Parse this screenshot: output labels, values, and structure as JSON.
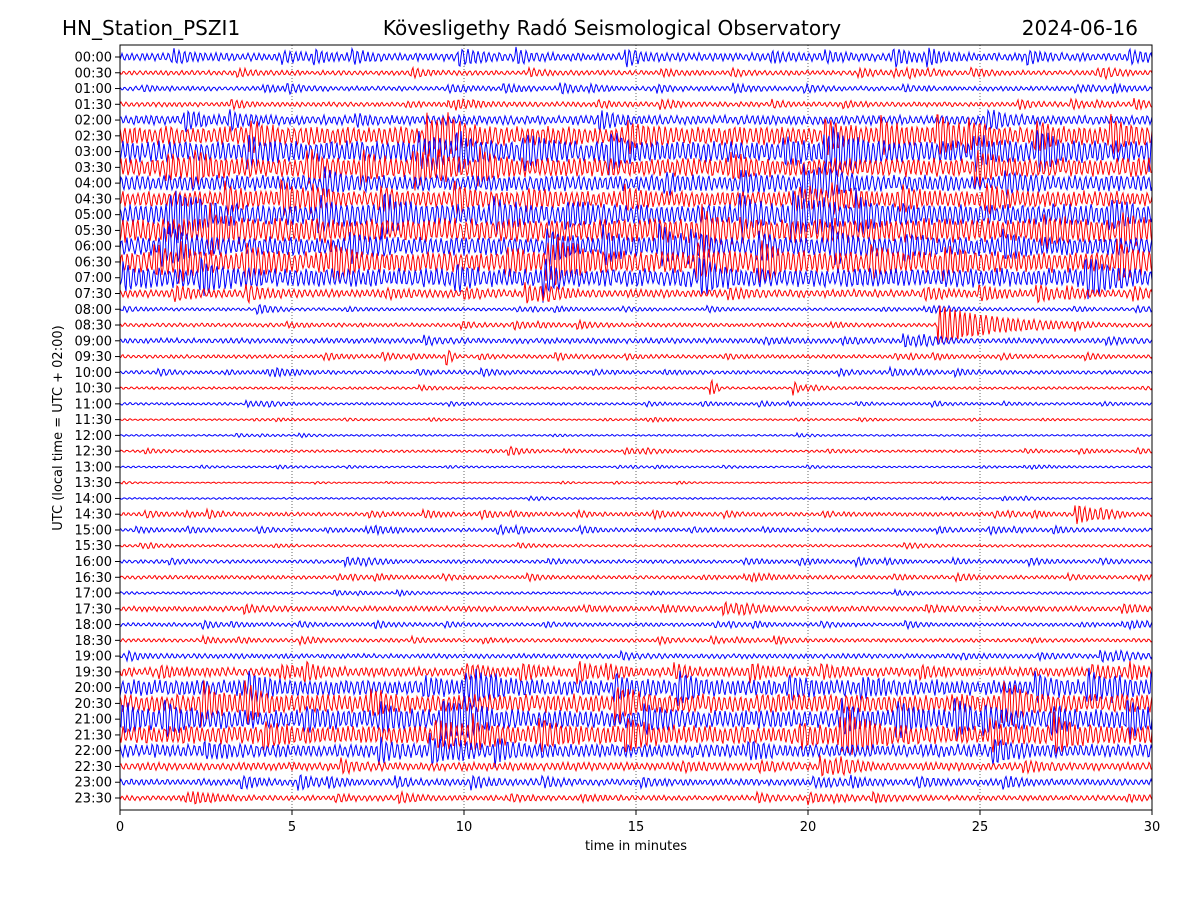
{
  "chart_data": {
    "type": "line",
    "title_left": "HN_Station_PSZI1",
    "title_center": "Kövesligethy Radó Seismological Observatory",
    "title_right": "2024-06-16",
    "xlabel": "time in minutes",
    "ylabel": "UTC (local time = UTC + 02:00)",
    "xlim": [
      0,
      30
    ],
    "xticks": [
      "0",
      "5",
      "10",
      "15",
      "20",
      "25",
      "30"
    ],
    "grid": "vertical dotted",
    "colors": [
      "#0000ff",
      "#ff0000"
    ],
    "rows": [
      {
        "label": "00:00",
        "amp": 0.3
      },
      {
        "label": "00:30",
        "amp": 0.18
      },
      {
        "label": "01:00",
        "amp": 0.18
      },
      {
        "label": "01:30",
        "amp": 0.18
      },
      {
        "label": "02:00",
        "amp": 0.35
      },
      {
        "label": "02:30",
        "amp": 0.7
      },
      {
        "label": "03:00",
        "amp": 0.8
      },
      {
        "label": "03:30",
        "amp": 0.7
      },
      {
        "label": "04:00",
        "amp": 0.6
      },
      {
        "label": "04:30",
        "amp": 0.6
      },
      {
        "label": "05:00",
        "amp": 0.8
      },
      {
        "label": "05:30",
        "amp": 0.9
      },
      {
        "label": "06:00",
        "amp": 0.7
      },
      {
        "label": "06:30",
        "amp": 0.8
      },
      {
        "label": "07:00",
        "amp": 0.7
      },
      {
        "label": "07:30",
        "amp": 0.3
      },
      {
        "label": "08:00",
        "amp": 0.12
      },
      {
        "label": "08:30",
        "amp": 0.15
      },
      {
        "label": "09:00",
        "amp": 0.2
      },
      {
        "label": "09:30",
        "amp": 0.14
      },
      {
        "label": "10:00",
        "amp": 0.14
      },
      {
        "label": "10:30",
        "amp": 0.1
      },
      {
        "label": "11:00",
        "amp": 0.1
      },
      {
        "label": "11:30",
        "amp": 0.07
      },
      {
        "label": "12:00",
        "amp": 0.07
      },
      {
        "label": "12:30",
        "amp": 0.1
      },
      {
        "label": "13:00",
        "amp": 0.07
      },
      {
        "label": "13:30",
        "amp": 0.05
      },
      {
        "label": "14:00",
        "amp": 0.07
      },
      {
        "label": "14:30",
        "amp": 0.15
      },
      {
        "label": "15:00",
        "amp": 0.14
      },
      {
        "label": "15:30",
        "amp": 0.1
      },
      {
        "label": "16:00",
        "amp": 0.14
      },
      {
        "label": "16:30",
        "amp": 0.14
      },
      {
        "label": "17:00",
        "amp": 0.1
      },
      {
        "label": "17:30",
        "amp": 0.2
      },
      {
        "label": "18:00",
        "amp": 0.14
      },
      {
        "label": "18:30",
        "amp": 0.14
      },
      {
        "label": "19:00",
        "amp": 0.18
      },
      {
        "label": "19:30",
        "amp": 0.35
      },
      {
        "label": "20:00",
        "amp": 0.6
      },
      {
        "label": "20:30",
        "amp": 0.7
      },
      {
        "label": "21:00",
        "amp": 0.7
      },
      {
        "label": "21:30",
        "amp": 0.7
      },
      {
        "label": "22:00",
        "amp": 0.5
      },
      {
        "label": "22:30",
        "amp": 0.3
      },
      {
        "label": "23:00",
        "amp": 0.25
      },
      {
        "label": "23:30",
        "amp": 0.2
      }
    ],
    "events": [
      {
        "row": 17,
        "minute": 23.8,
        "amp": 1.3,
        "duration": 4
      },
      {
        "row": 29,
        "minute": 27.8,
        "amp": 0.6,
        "duration": 1.5
      },
      {
        "row": 25,
        "minute": 11.3,
        "amp": 0.25,
        "duration": 1
      },
      {
        "row": 21,
        "minute": 17.2,
        "amp": 0.5,
        "duration": 0.3
      },
      {
        "row": 21,
        "minute": 19.6,
        "amp": 0.4,
        "duration": 0.3
      },
      {
        "row": 19,
        "minute": 9.5,
        "amp": 0.5,
        "duration": 0.3
      },
      {
        "row": 16,
        "minute": 4,
        "amp": 0.3,
        "duration": 1
      },
      {
        "row": 30,
        "minute": 11,
        "amp": 0.25,
        "duration": 1
      },
      {
        "row": 14,
        "minute": 12.3,
        "amp": 1.1,
        "duration": 0.5
      }
    ]
  }
}
